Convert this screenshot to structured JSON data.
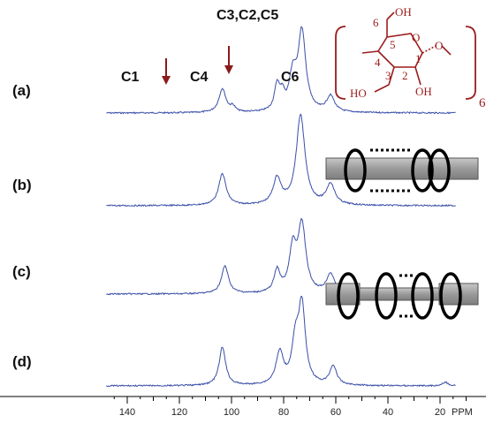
{
  "chart_data": {
    "type": "line",
    "x_unit": "PPM",
    "x_axis": {
      "min": 0,
      "max": 145,
      "reversed": true,
      "ticks": [
        140,
        120,
        100,
        80,
        60,
        40,
        20
      ]
    },
    "series": [
      {
        "label": "(a)",
        "peaks": [
          {
            "ppm": 103.5,
            "height": 0.27,
            "width": 1.6
          },
          {
            "ppm": 99.5,
            "height": 0.06,
            "width": 1.1
          },
          {
            "ppm": 82.5,
            "height": 0.29,
            "width": 1.2
          },
          {
            "ppm": 80.5,
            "height": 0.16,
            "width": 1.0
          },
          {
            "ppm": 76.5,
            "height": 0.38,
            "width": 1.6
          },
          {
            "ppm": 73.0,
            "height": 0.9,
            "width": 1.8
          },
          {
            "ppm": 62.0,
            "height": 0.18,
            "width": 1.8
          }
        ]
      },
      {
        "label": "(b)",
        "peaks": [
          {
            "ppm": 103.5,
            "height": 0.35,
            "width": 1.7
          },
          {
            "ppm": 82.5,
            "height": 0.29,
            "width": 1.8
          },
          {
            "ppm": 73.5,
            "height": 1.0,
            "width": 2.0
          },
          {
            "ppm": 62.0,
            "height": 0.23,
            "width": 1.9
          }
        ]
      },
      {
        "label": "(c)",
        "peaks": [
          {
            "ppm": 102.5,
            "height": 0.33,
            "width": 1.6
          },
          {
            "ppm": 82.5,
            "height": 0.26,
            "width": 1.4
          },
          {
            "ppm": 76.5,
            "height": 0.5,
            "width": 1.6
          },
          {
            "ppm": 73.0,
            "height": 0.8,
            "width": 1.8
          },
          {
            "ppm": 62.0,
            "height": 0.23,
            "width": 1.8
          }
        ]
      },
      {
        "label": "(d)",
        "peaks": [
          {
            "ppm": 103.5,
            "height": 0.42,
            "width": 1.5
          },
          {
            "ppm": 81.5,
            "height": 0.35,
            "width": 1.7
          },
          {
            "ppm": 75.5,
            "height": 0.42,
            "width": 1.6
          },
          {
            "ppm": 73.0,
            "height": 0.85,
            "width": 1.6
          },
          {
            "ppm": 61.0,
            "height": 0.21,
            "width": 1.6
          },
          {
            "ppm": 18.0,
            "height": 0.04,
            "width": 1.2
          }
        ]
      }
    ],
    "annotations": {
      "peak_labels": [
        {
          "text": "C1",
          "ppm": 104
        },
        {
          "text": "C4",
          "ppm": 84
        },
        {
          "text": "C3,C2,C5",
          "ppm": 74
        },
        {
          "text": "C6",
          "ppm": 62
        }
      ],
      "arrows_ppm": [
        98,
        81
      ],
      "line_color": "#3a4fa8",
      "arrow_color": "#8b1a1a"
    }
  },
  "molecule": {
    "atom_labels": [
      "OH",
      "6",
      "5",
      "4",
      "3",
      "2",
      "1",
      "O",
      "O",
      "HO",
      "OH"
    ],
    "subscript": "6",
    "color": "#9b1c1c"
  }
}
